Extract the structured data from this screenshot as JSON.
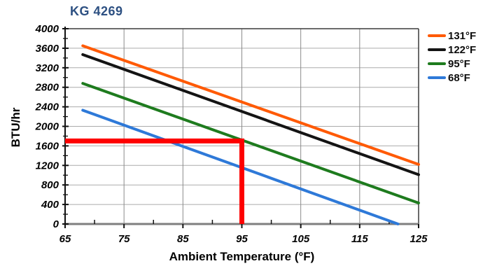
{
  "title": "KG 4269",
  "colors": {
    "title": "#2D5082",
    "grid_h": "#ABABAB",
    "grid_v": "#8A8A8A",
    "frame": "#3A3A3A",
    "axis": "#111111",
    "baseline": "#7F7F7F",
    "annotation_red": "#FE0000"
  },
  "chart_data": {
    "type": "line",
    "title": "KG 4269",
    "xlabel": "Ambient Temperature (°F)",
    "ylabel": "BTU/hr",
    "xlim": [
      65,
      125
    ],
    "ylim": [
      0,
      4000
    ],
    "x_ticks": [
      65,
      75,
      85,
      95,
      105,
      115,
      125
    ],
    "x_minor_ticks": [
      70,
      80,
      90,
      100,
      110,
      120
    ],
    "y_ticks": [
      0,
      400,
      800,
      1200,
      1600,
      2000,
      2400,
      2800,
      3200,
      3600,
      4000
    ],
    "y_minor_ticks": [
      200,
      600,
      1000,
      1400,
      1800,
      2200,
      2600,
      3000,
      3400,
      3800
    ],
    "grid": true,
    "legend_position": "right",
    "series": [
      {
        "name": "131°F",
        "color": "#FF5A05",
        "x": [
          68,
          125
        ],
        "y": [
          3650,
          1220
        ]
      },
      {
        "name": "122°F",
        "color": "#141414",
        "x": [
          68,
          125
        ],
        "y": [
          3470,
          1010
        ]
      },
      {
        "name": "95°F",
        "color": "#1E7B1E",
        "x": [
          68,
          125
        ],
        "y": [
          2880,
          430
        ]
      },
      {
        "name": "68°F",
        "color": "#2E79D8",
        "x": [
          68,
          121.5
        ],
        "y": [
          2330,
          0
        ]
      }
    ],
    "annotation": {
      "description": "red reading guide: 95°F ambient on the 95°F curve gives ~1700 BTU/hr",
      "color": "#FE0000",
      "y_value": 1700,
      "x_value": 95,
      "x_from": 65,
      "down_to": 0
    }
  }
}
